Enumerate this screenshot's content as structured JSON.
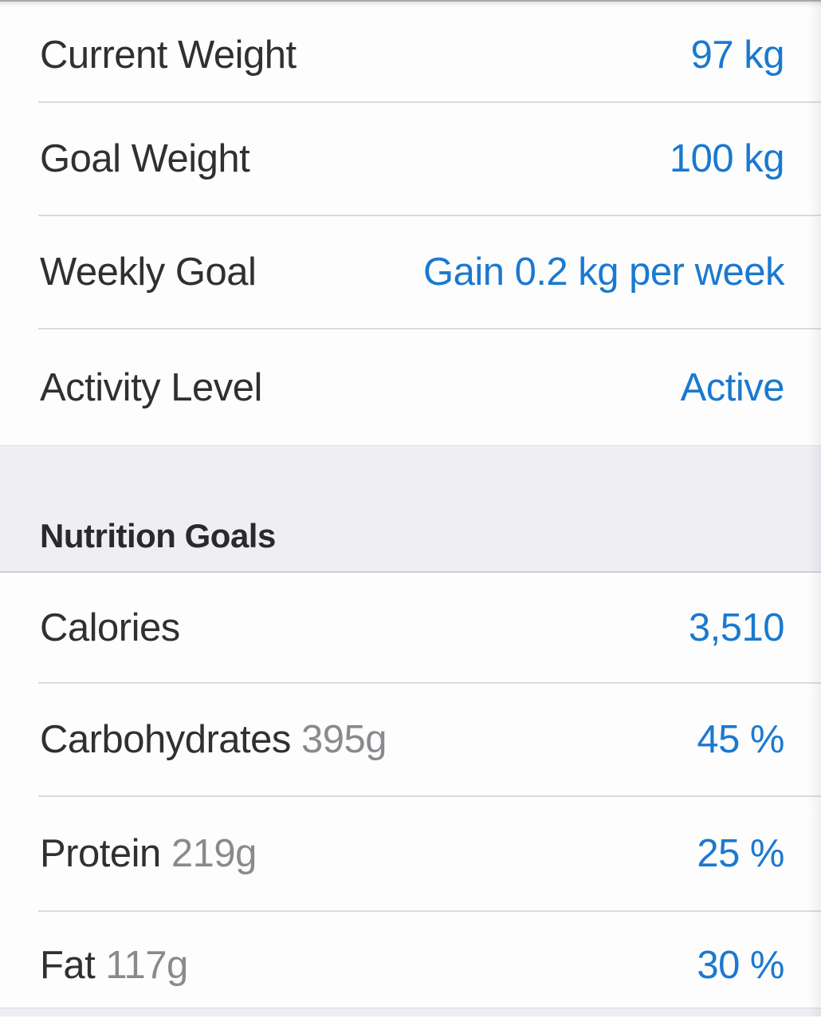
{
  "colors": {
    "accent_blue": "#1a79d0",
    "label_dark": "#303032",
    "label_grey": "#8a8a8e",
    "separator": "#dadade",
    "section_band_bg": "#eeeef3",
    "row_bg": "#fdfdfd"
  },
  "profile_rows": [
    {
      "label": "Current Weight",
      "value": "97 kg"
    },
    {
      "label": "Goal Weight",
      "value": "100 kg"
    },
    {
      "label": "Weekly Goal",
      "value": "Gain 0.2 kg per week"
    },
    {
      "label": "Activity Level",
      "value": "Active"
    }
  ],
  "section_header": "Nutrition Goals",
  "nutrition_rows": [
    {
      "label": "Calories",
      "sub": "",
      "value": "3,510"
    },
    {
      "label": "Carbohydrates",
      "sub": "395g",
      "value": "45 %"
    },
    {
      "label": "Protein",
      "sub": "219g",
      "value": "25 %"
    },
    {
      "label": "Fat",
      "sub": "117g",
      "value": "30 %"
    }
  ]
}
